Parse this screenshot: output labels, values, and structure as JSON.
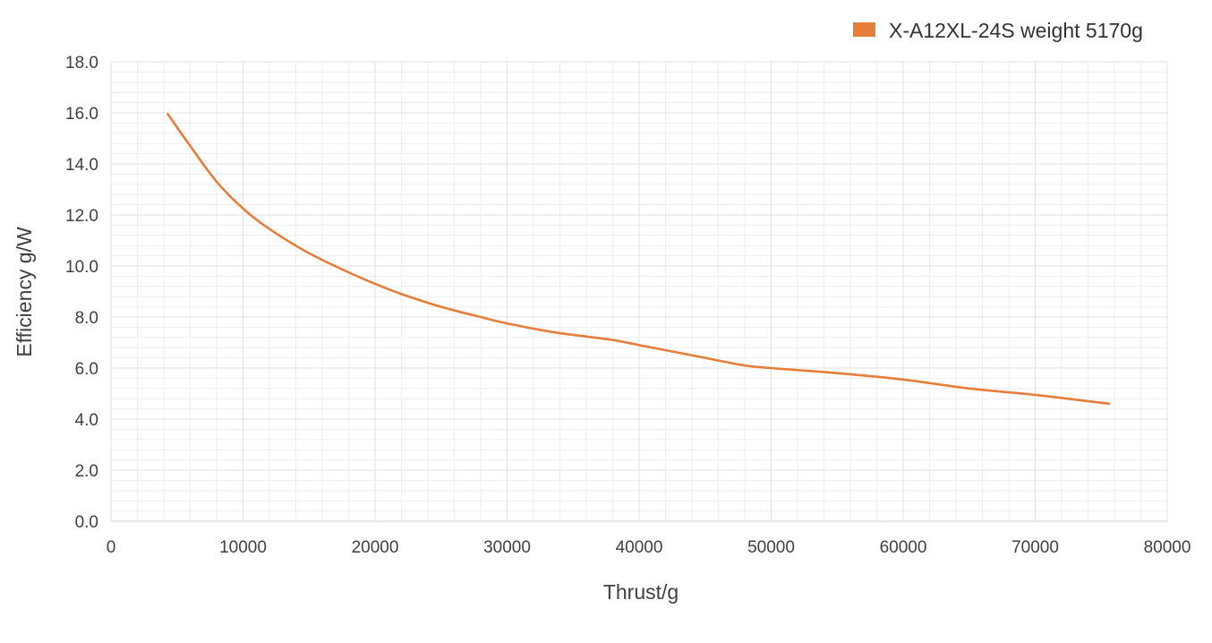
{
  "chart_data": {
    "type": "line",
    "title": "",
    "xlabel": "Thrust/g",
    "ylabel": "Efficiency g/W",
    "xlim": [
      0,
      80000
    ],
    "ylim": [
      0,
      18
    ],
    "x_ticks": [
      0,
      10000,
      20000,
      30000,
      40000,
      50000,
      60000,
      70000,
      80000
    ],
    "y_ticks": [
      0,
      2,
      4,
      6,
      8,
      10,
      12,
      14,
      16,
      18
    ],
    "x_tick_labels": [
      "0",
      "10000",
      "20000",
      "30000",
      "40000",
      "50000",
      "60000",
      "70000",
      "80000"
    ],
    "y_tick_labels": [
      "0.0",
      "2.0",
      "4.0",
      "6.0",
      "8.0",
      "10.0",
      "12.0",
      "14.0",
      "16.0",
      "18.0"
    ],
    "grid": true,
    "legend_position": "top-right",
    "series": [
      {
        "name": "X-A12XL-24S weight 5170g",
        "color": "#E67E3A",
        "x": [
          4300,
          6000,
          8000,
          10000,
          12000,
          15000,
          18000,
          20000,
          22000,
          25000,
          28000,
          30000,
          33000,
          35000,
          38000,
          40000,
          43000,
          45000,
          48000,
          50000,
          55000,
          60000,
          65000,
          70000,
          75600
        ],
        "y": [
          15.95,
          14.7,
          13.3,
          12.25,
          11.45,
          10.5,
          9.75,
          9.3,
          8.9,
          8.4,
          8.0,
          7.75,
          7.45,
          7.3,
          7.1,
          6.9,
          6.6,
          6.4,
          6.1,
          6.0,
          5.8,
          5.55,
          5.2,
          4.95,
          4.6
        ]
      }
    ]
  }
}
